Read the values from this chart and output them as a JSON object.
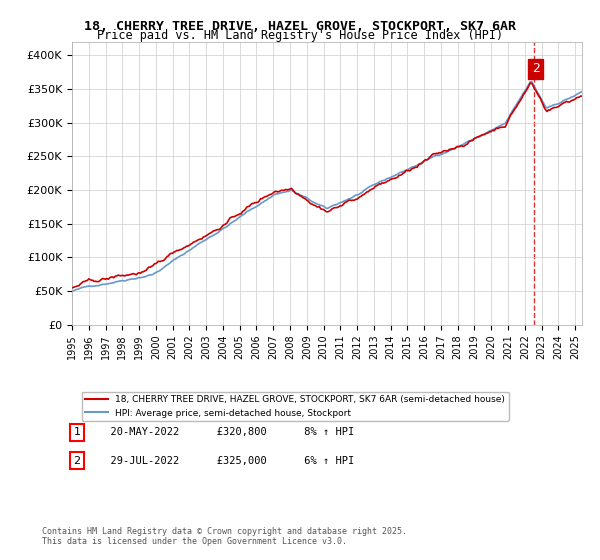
{
  "title1": "18, CHERRY TREE DRIVE, HAZEL GROVE, STOCKPORT, SK7 6AR",
  "title2": "Price paid vs. HM Land Registry's House Price Index (HPI)",
  "legend_line1": "18, CHERRY TREE DRIVE, HAZEL GROVE, STOCKPORT, SK7 6AR (semi-detached house)",
  "legend_line2": "HPI: Average price, semi-detached house, Stockport",
  "footnote": "Contains HM Land Registry data © Crown copyright and database right 2025.\nThis data is licensed under the Open Government Licence v3.0.",
  "table_rows": [
    {
      "num": "1",
      "date": "20-MAY-2022",
      "price": "£320,800",
      "hpi": "8% ↑ HPI"
    },
    {
      "num": "2",
      "date": "29-JUL-2022",
      "price": "£325,000",
      "hpi": "6% ↑ HPI"
    }
  ],
  "line_color_red": "#cc0000",
  "line_color_blue": "#6699cc",
  "dashed_color": "#cc0000",
  "annotation2_color": "#cc0000",
  "ylim_min": 0,
  "ylim_max": 420000,
  "x_start_year": 1995,
  "x_end_year": 2025,
  "background_color": "#ffffff",
  "grid_color": "#cccccc"
}
